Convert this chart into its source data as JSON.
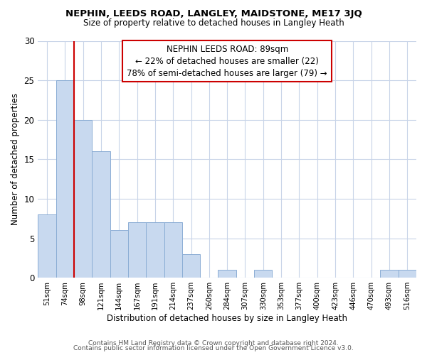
{
  "title": "NEPHIN, LEEDS ROAD, LANGLEY, MAIDSTONE, ME17 3JQ",
  "subtitle": "Size of property relative to detached houses in Langley Heath",
  "xlabel": "Distribution of detached houses by size in Langley Heath",
  "ylabel": "Number of detached properties",
  "bar_labels": [
    "51sqm",
    "74sqm",
    "98sqm",
    "121sqm",
    "144sqm",
    "167sqm",
    "191sqm",
    "214sqm",
    "237sqm",
    "260sqm",
    "284sqm",
    "307sqm",
    "330sqm",
    "353sqm",
    "377sqm",
    "400sqm",
    "423sqm",
    "446sqm",
    "470sqm",
    "493sqm",
    "516sqm"
  ],
  "bar_values": [
    8,
    25,
    20,
    16,
    6,
    7,
    7,
    7,
    3,
    0,
    1,
    0,
    1,
    0,
    0,
    0,
    0,
    0,
    0,
    1,
    1
  ],
  "bar_color": "#c8d9ef",
  "bar_edge_color": "#8badd4",
  "ref_line_index": 1.5,
  "annotation_label": "NEPHIN LEEDS ROAD: 89sqm",
  "annotation_line1": "← 22% of detached houses are smaller (22)",
  "annotation_line2": "78% of semi-detached houses are larger (79) →",
  "ref_line_color": "#cc0000",
  "annotation_box_edge": "#cc0000",
  "ylim": [
    0,
    30
  ],
  "yticks": [
    0,
    5,
    10,
    15,
    20,
    25,
    30
  ],
  "footer1": "Contains HM Land Registry data © Crown copyright and database right 2024.",
  "footer2": "Contains public sector information licensed under the Open Government Licence v3.0.",
  "background_color": "#ffffff",
  "grid_color": "#c8d4e8"
}
